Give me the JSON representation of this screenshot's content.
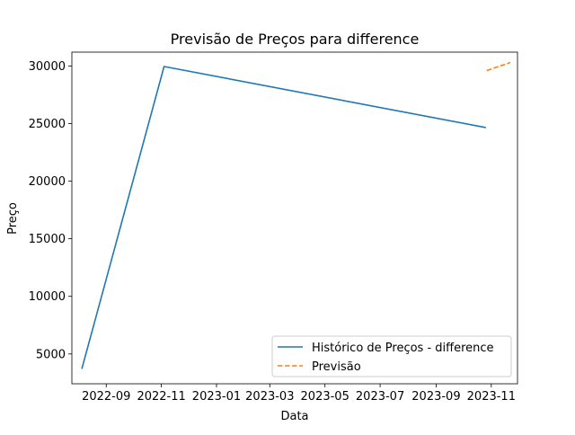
{
  "chart_data": {
    "type": "line",
    "title": "Previsão de Preços para difference",
    "xlabel": "Data",
    "ylabel": "Preço",
    "x_axis_type": "date",
    "xlim": [
      "2022-07-25",
      "2023-11-30"
    ],
    "ylim": [
      2410,
      31200
    ],
    "x_ticks": [
      {
        "date": "2022-09-01",
        "label": "2022-09"
      },
      {
        "date": "2022-11-01",
        "label": "2022-11"
      },
      {
        "date": "2023-01-01",
        "label": "2023-01"
      },
      {
        "date": "2023-03-01",
        "label": "2023-03"
      },
      {
        "date": "2023-05-01",
        "label": "2023-05"
      },
      {
        "date": "2023-07-01",
        "label": "2023-07"
      },
      {
        "date": "2023-09-01",
        "label": "2023-09"
      },
      {
        "date": "2023-11-01",
        "label": "2023-11"
      }
    ],
    "y_ticks": [
      5000,
      10000,
      15000,
      20000,
      25000,
      30000
    ],
    "grid": false,
    "legend_position": "lower right",
    "series": [
      {
        "name": "Histórico de Preços - difference",
        "color": "#1f77b4",
        "style": "solid",
        "points": [
          {
            "x": "2022-08-05",
            "y": 3700
          },
          {
            "x": "2022-11-04",
            "y": 29950
          },
          {
            "x": "2023-10-26",
            "y": 24650
          }
        ]
      },
      {
        "name": "Previsão",
        "color": "#ff7f0e",
        "style": "dashed",
        "points": [
          {
            "x": "2023-10-27",
            "y": 29600
          },
          {
            "x": "2023-11-22",
            "y": 30300
          }
        ]
      }
    ]
  }
}
